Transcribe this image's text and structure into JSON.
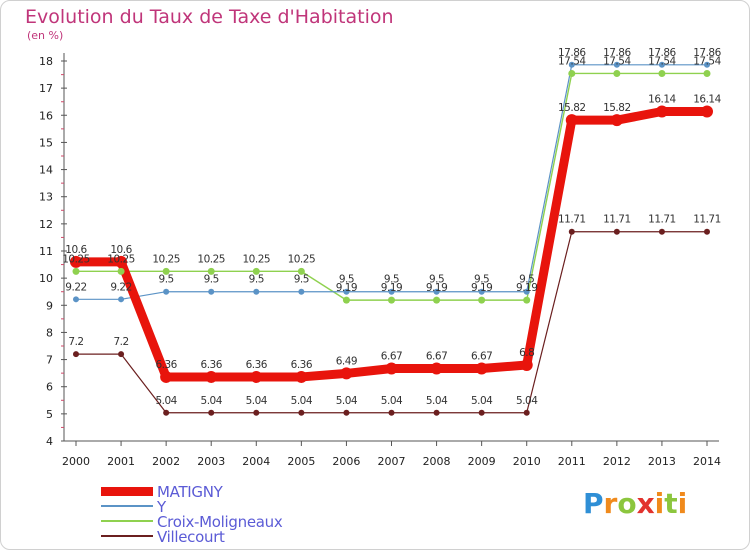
{
  "title": "Evolution du Taux de Taxe d'Habitation",
  "unit_label": "(en %)",
  "logo": {
    "letters": [
      "P",
      "r",
      "o",
      "x",
      "i",
      "t",
      "i"
    ],
    "colors": [
      "#2f8fd6",
      "#f08a1c",
      "#8cc63e",
      "#e2322d",
      "#f08a1c",
      "#8cc63e",
      "#f08a1c"
    ]
  },
  "chart_data": {
    "type": "line",
    "x": [
      "2000",
      "2001",
      "2002",
      "2003",
      "2004",
      "2005",
      "2006",
      "2007",
      "2008",
      "2009",
      "2010",
      "2011",
      "2012",
      "2013",
      "2014"
    ],
    "ylim": [
      4,
      18
    ],
    "yticks": [
      4,
      5,
      6,
      7,
      8,
      9,
      10,
      11,
      12,
      13,
      14,
      15,
      16,
      17,
      18
    ],
    "grid": false,
    "legend_position": "bottom-left",
    "series": [
      {
        "name": "Villecourt",
        "color": "#6b1f1f",
        "width": 1.2,
        "marker_r": 3,
        "values": [
          7.2,
          7.2,
          5.04,
          5.04,
          5.04,
          5.04,
          5.04,
          5.04,
          5.04,
          5.04,
          5.04,
          11.71,
          11.71,
          11.71,
          11.71
        ],
        "labels": [
          "7.2",
          "7.2",
          "5.04",
          "5.04",
          "5.04",
          "5.04",
          "5.04",
          "5.04",
          "5.04",
          "5.04",
          "5.04",
          "11.71",
          "11.71",
          "11.71",
          "11.71"
        ]
      },
      {
        "name": "Croix-Moligneaux",
        "color": "#8fd14f",
        "width": 1.4,
        "marker_r": 3.5,
        "values": [
          10.25,
          10.25,
          10.25,
          10.25,
          10.25,
          10.25,
          9.19,
          9.19,
          9.19,
          9.19,
          9.19,
          17.54,
          17.54,
          17.54,
          17.54
        ],
        "labels": [
          "10.25",
          "10.25",
          "10.25",
          "10.25",
          "10.25",
          "10.25",
          "9.19",
          "9.19",
          "9.19",
          "9.19",
          "9.19",
          "17.54",
          "17.54",
          "17.54",
          "17.54"
        ]
      },
      {
        "name": "Y",
        "color": "#5b93c6",
        "width": 1.2,
        "marker_r": 3,
        "values": [
          9.22,
          9.22,
          9.5,
          9.5,
          9.5,
          9.5,
          9.5,
          9.5,
          9.5,
          9.5,
          9.5,
          17.86,
          17.86,
          17.86,
          17.86
        ],
        "labels": [
          "9.22",
          "9.22",
          "9.5",
          "9.5",
          "9.5",
          "9.5",
          "9.5",
          "9.5",
          "9.5",
          "9.5",
          "9.5",
          "17.86",
          "17.86",
          "17.86",
          "17.86"
        ]
      },
      {
        "name": "MATIGNY",
        "color": "#e8140c",
        "width": 9,
        "marker_r": 6,
        "values": [
          10.6,
          10.6,
          6.36,
          6.36,
          6.36,
          6.36,
          6.49,
          6.67,
          6.67,
          6.67,
          6.8,
          15.82,
          15.82,
          16.14,
          16.14
        ],
        "labels": [
          "10.6",
          "10.6",
          "6.36",
          "6.36",
          "6.36",
          "6.36",
          "6.49",
          "6.67",
          "6.67",
          "6.67",
          "6.8",
          "15.82",
          "15.82",
          "16.14",
          "16.14"
        ]
      }
    ],
    "legend_order": [
      "MATIGNY",
      "Y",
      "Croix-Moligneaux",
      "Villecourt"
    ]
  }
}
